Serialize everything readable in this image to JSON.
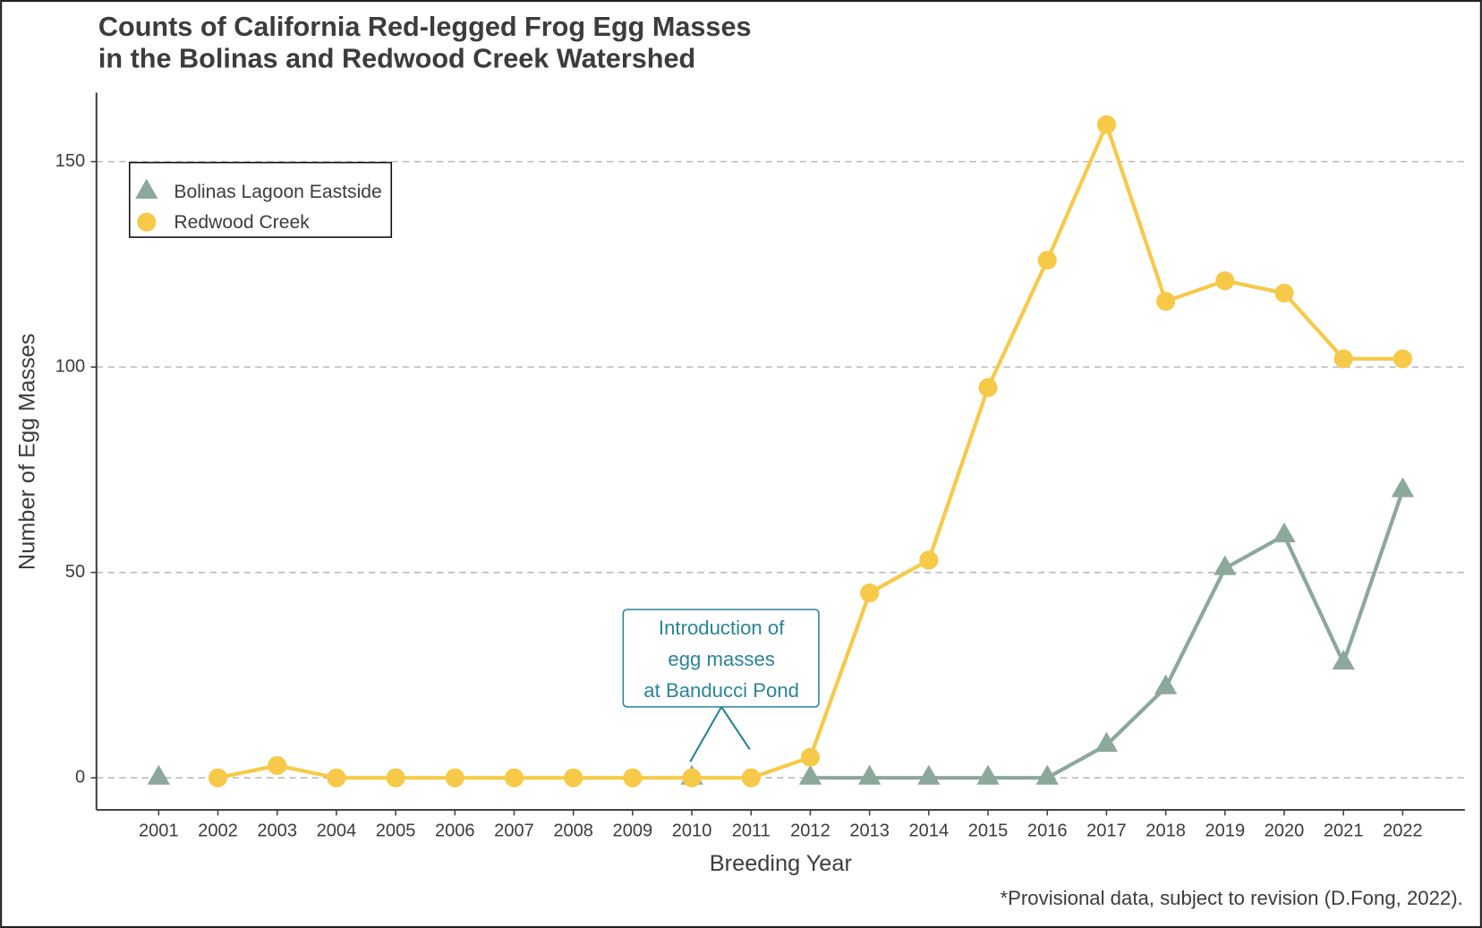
{
  "chart_data": {
    "type": "line",
    "title": [
      "Counts of California Red-legged Frog Egg Masses",
      "in the Bolinas and Redwood Creek Watershed"
    ],
    "x_label": "Breeding Year",
    "y_label": "Number of Egg Masses",
    "caption": "*Provisional data, subject to revision (D.Fong, 2022).",
    "annotation": {
      "lines": [
        "Introduction of",
        "egg masses",
        "at Banducci Pond"
      ],
      "x": 2010.5
    },
    "x": [
      2001,
      2002,
      2003,
      2004,
      2005,
      2006,
      2007,
      2008,
      2009,
      2010,
      2011,
      2012,
      2013,
      2014,
      2015,
      2016,
      2017,
      2018,
      2019,
      2020,
      2021,
      2022
    ],
    "series": [
      {
        "name": "Bolinas Lagoon Eastside",
        "color": "#8ca89a",
        "marker": "triangle",
        "values": [
          0,
          null,
          null,
          null,
          null,
          null,
          null,
          null,
          null,
          0,
          null,
          0,
          0,
          0,
          0,
          0,
          8,
          22,
          51,
          59,
          28,
          70
        ]
      },
      {
        "name": "Redwood Creek",
        "color": "#f7c948",
        "marker": "circle",
        "values": [
          null,
          0,
          3,
          0,
          0,
          0,
          0,
          0,
          0,
          0,
          0,
          5,
          45,
          53,
          95,
          126,
          159,
          116,
          121,
          118,
          102,
          102
        ]
      }
    ],
    "xlim": [
      1999.95,
      2023.05
    ],
    "xticks": [
      2001,
      2002,
      2003,
      2004,
      2005,
      2006,
      2007,
      2008,
      2009,
      2010,
      2011,
      2012,
      2013,
      2014,
      2015,
      2016,
      2017,
      2018,
      2019,
      2020,
      2021,
      2022
    ],
    "ylim": [
      -7.8,
      166.8
    ],
    "yticks": [
      0,
      50,
      100,
      150
    ],
    "grid": true,
    "legend": "top-left"
  }
}
